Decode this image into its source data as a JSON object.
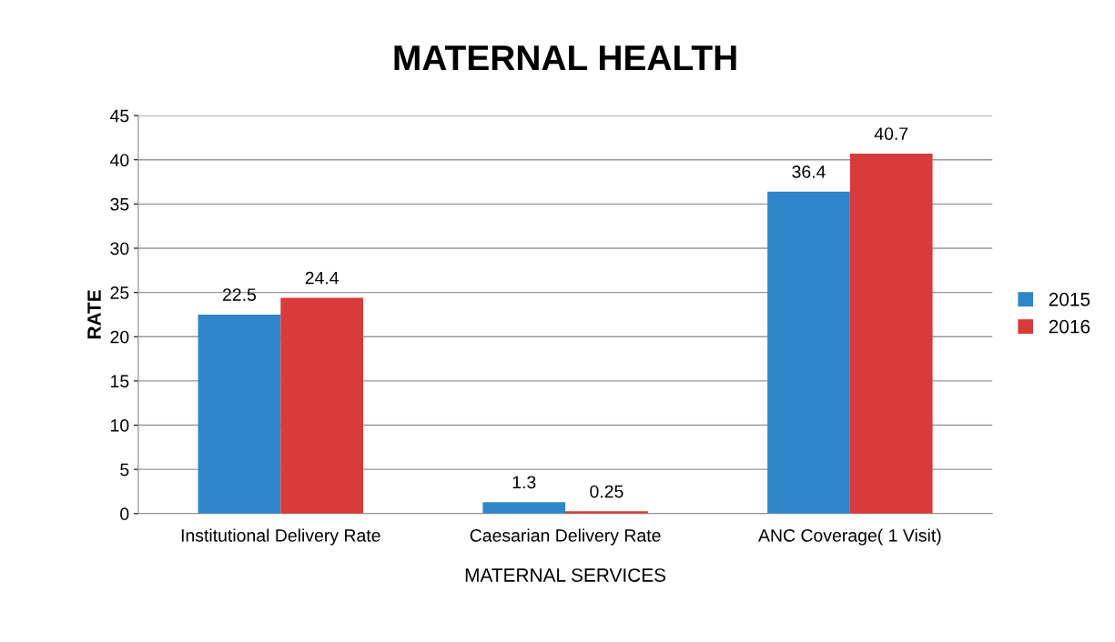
{
  "chart_data": {
    "type": "bar",
    "title": "MATERNAL HEALTH",
    "xlabel": "MATERNAL SERVICES",
    "ylabel": "RATE",
    "categories": [
      "Institutional Delivery Rate",
      "Caesarian Delivery Rate",
      "ANC Coverage( 1 Visit)"
    ],
    "series": [
      {
        "name": "2015",
        "color": "#2e86c8",
        "values": [
          22.5,
          1.3,
          36.4
        ]
      },
      {
        "name": "2016",
        "color": "#d93a3a",
        "values": [
          24.4,
          0.25,
          40.7
        ]
      }
    ],
    "ylim": [
      0,
      45
    ],
    "yticks": [
      0,
      5,
      10,
      15,
      20,
      25,
      30,
      35,
      40,
      45
    ],
    "grid": "y",
    "legend": "right",
    "data_labels": true
  }
}
